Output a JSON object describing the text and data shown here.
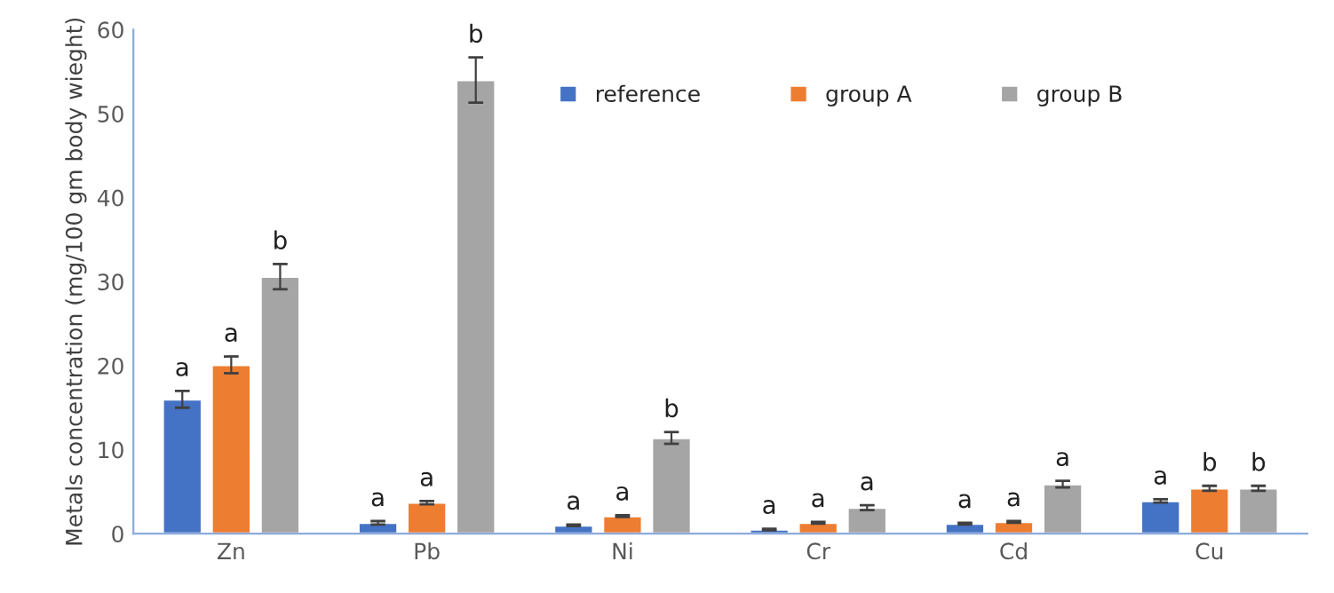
{
  "chart_data": {
    "type": "bar",
    "ylabel": "Metals concentration (mg/100 gm body wieght)",
    "categories": [
      "Zn",
      "Pb",
      "Ni",
      "Cr",
      "Cd",
      "Cu"
    ],
    "series": [
      {
        "name": "reference",
        "color": "#4472c4",
        "values": [
          16,
          1.3,
          1.0,
          0.5,
          1.2,
          3.9
        ],
        "errors": [
          1.0,
          0.2,
          0.1,
          0.1,
          0.1,
          0.2
        ],
        "value_labels": [
          "a",
          "a",
          "a",
          "a",
          "a",
          "a"
        ]
      },
      {
        "name": "group A",
        "color": "#ed7d31",
        "values": [
          20.1,
          3.7,
          2.1,
          1.3,
          1.4,
          5.4
        ],
        "errors": [
          1.0,
          0.2,
          0.1,
          0.1,
          0.1,
          0.3
        ],
        "value_labels": [
          "a",
          "a",
          "a",
          "a",
          "a",
          "b"
        ]
      },
      {
        "name": "group B",
        "color": "#a5a5a5",
        "values": [
          30.6,
          54,
          11.4,
          3.1,
          5.9,
          5.4
        ],
        "errors": [
          1.5,
          2.7,
          0.7,
          0.3,
          0.4,
          0.3
        ],
        "value_labels": [
          "b",
          "b",
          "b",
          "a",
          "a",
          "b"
        ]
      }
    ],
    "ylim": [
      0,
      60
    ],
    "yticks": [
      0,
      10,
      20,
      30,
      40,
      50,
      60
    ],
    "grid": false,
    "legend": "top right"
  }
}
